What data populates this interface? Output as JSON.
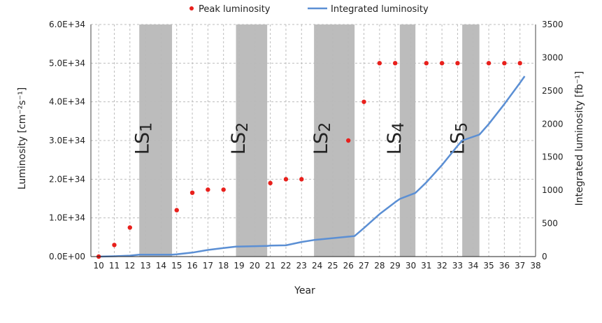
{
  "chart_data": {
    "type": "line",
    "title": "",
    "xlabel": "Year",
    "ylabel_left": "Luminosity [cm⁻²s⁻¹]",
    "ylabel_right": "Integrated luminosity [fb⁻¹]",
    "xlim": [
      9.5,
      38
    ],
    "x_ticks": [
      10,
      11,
      12,
      13,
      14,
      15,
      16,
      17,
      18,
      19,
      20,
      21,
      22,
      23,
      24,
      25,
      26,
      27,
      28,
      29,
      30,
      31,
      32,
      33,
      34,
      35,
      36,
      37,
      38
    ],
    "ylim_left": [
      0,
      6e+34
    ],
    "y_ticks_left": [
      "0.0E+00",
      "1.0E+34",
      "2.0E+34",
      "3.0E+34",
      "4.0E+34",
      "5.0E+34",
      "6.0E+34"
    ],
    "ylim_right": [
      0,
      3500
    ],
    "y_ticks_right": [
      0,
      500,
      1000,
      1500,
      2000,
      2500,
      3000,
      3500
    ],
    "grid": true,
    "legend_position": "top-center",
    "legend": [
      {
        "label": "Peak luminosity",
        "marker": "dot",
        "color": "#e8201c"
      },
      {
        "label": "Integrated luminosity",
        "marker": "line",
        "color": "#5b8fd4"
      }
    ],
    "shutdowns": [
      {
        "label": "LS1",
        "base": "LS",
        "sub": "1",
        "start": 12.6,
        "end": 14.7
      },
      {
        "label": "LS2",
        "base": "LS",
        "sub": "2",
        "start": 18.8,
        "end": 20.8
      },
      {
        "label": "LS2",
        "base": "LS",
        "sub": "2",
        "start": 23.8,
        "end": 26.4
      },
      {
        "label": "LS4",
        "base": "LS",
        "sub": "4",
        "start": 29.3,
        "end": 30.3
      },
      {
        "label": "LS5",
        "base": "LS",
        "sub": "5",
        "start": 33.3,
        "end": 34.4
      }
    ],
    "series": [
      {
        "name": "Peak luminosity",
        "axis": "left",
        "color": "#e8201c",
        "points": [
          [
            10,
            0.0
          ],
          [
            11,
            3e+33
          ],
          [
            12,
            7.5e+33
          ],
          [
            15,
            1.2e+34
          ],
          [
            16,
            1.65e+34
          ],
          [
            17,
            1.73e+34
          ],
          [
            18,
            1.73e+34
          ],
          [
            21,
            1.9e+34
          ],
          [
            22,
            2e+34
          ],
          [
            23,
            2e+34
          ],
          [
            26,
            3e+34
          ],
          [
            27,
            4e+34
          ],
          [
            28,
            5e+34
          ],
          [
            29,
            5e+34
          ],
          [
            31,
            5e+34
          ],
          [
            32,
            5e+34
          ],
          [
            33,
            5e+34
          ],
          [
            35,
            5e+34
          ],
          [
            36,
            5e+34
          ],
          [
            37,
            5e+34
          ]
        ]
      },
      {
        "name": "Integrated luminosity",
        "axis": "right",
        "color": "#5b8fd4",
        "points": [
          [
            10,
            0
          ],
          [
            11,
            5
          ],
          [
            12,
            15
          ],
          [
            12.6,
            28
          ],
          [
            14.7,
            30
          ],
          [
            15,
            35
          ],
          [
            16,
            60
          ],
          [
            17,
            100
          ],
          [
            18,
            130
          ],
          [
            18.8,
            150
          ],
          [
            20.8,
            160
          ],
          [
            21,
            165
          ],
          [
            22,
            170
          ],
          [
            23,
            220
          ],
          [
            23.8,
            250
          ],
          [
            26.4,
            310
          ],
          [
            27,
            430
          ],
          [
            28,
            640
          ],
          [
            29,
            820
          ],
          [
            29.3,
            870
          ],
          [
            30.3,
            960
          ],
          [
            31,
            1120
          ],
          [
            32,
            1380
          ],
          [
            33,
            1670
          ],
          [
            33.3,
            1750
          ],
          [
            34.4,
            1840
          ],
          [
            35,
            2000
          ],
          [
            36,
            2300
          ],
          [
            37,
            2620
          ],
          [
            37.3,
            2720
          ]
        ]
      }
    ]
  }
}
